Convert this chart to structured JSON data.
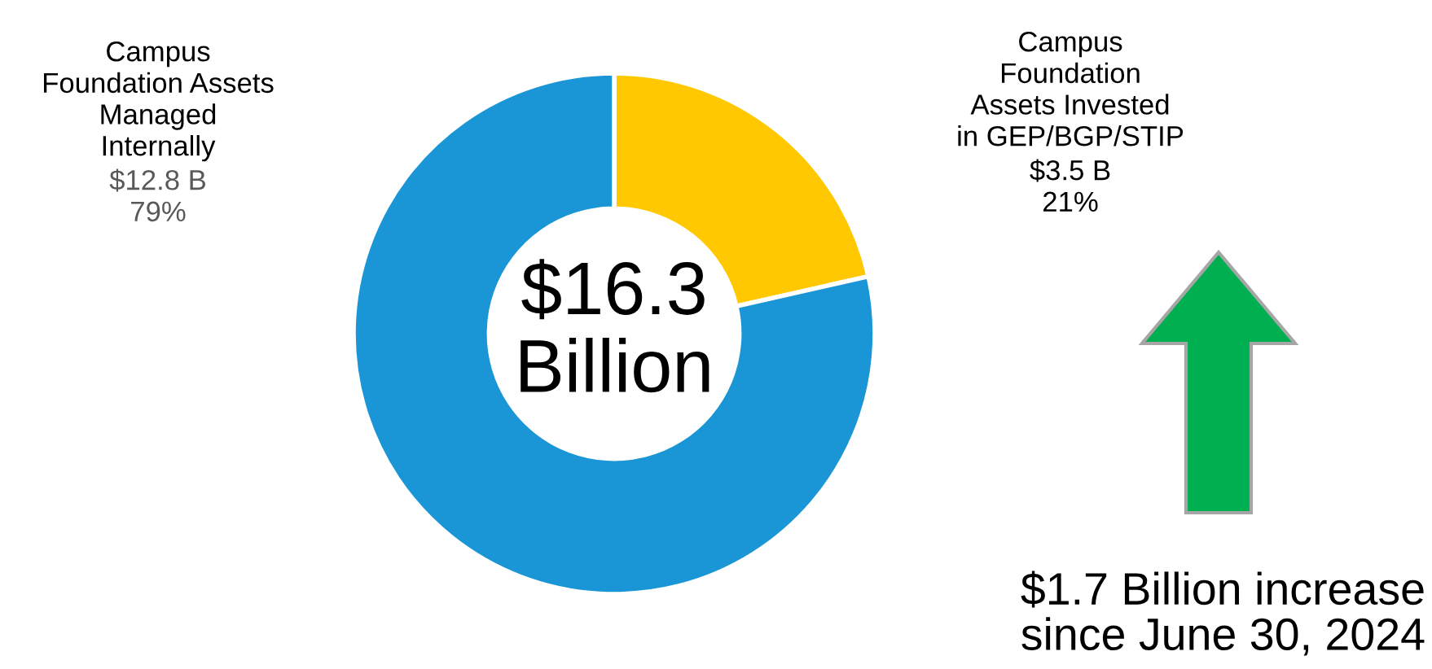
{
  "chart_data": {
    "type": "donut",
    "categories": [
      "Campus\nFoundation\nAssets Invested\nin GEP/BGP/STIP",
      "Campus\nFoundation Assets\nManaged\nInternally"
    ],
    "values": [
      3.5,
      12.8
    ],
    "colors": [
      "#ffc800",
      "#1a96d6"
    ],
    "value_labels": [
      "$3.5 B\n21%",
      "$12.8 B\n79%"
    ],
    "annotations": [
      "$16.3\nBillion",
      "$1.7 Billion increase\nsince June 30, 2024"
    ],
    "legend": false
  }
}
